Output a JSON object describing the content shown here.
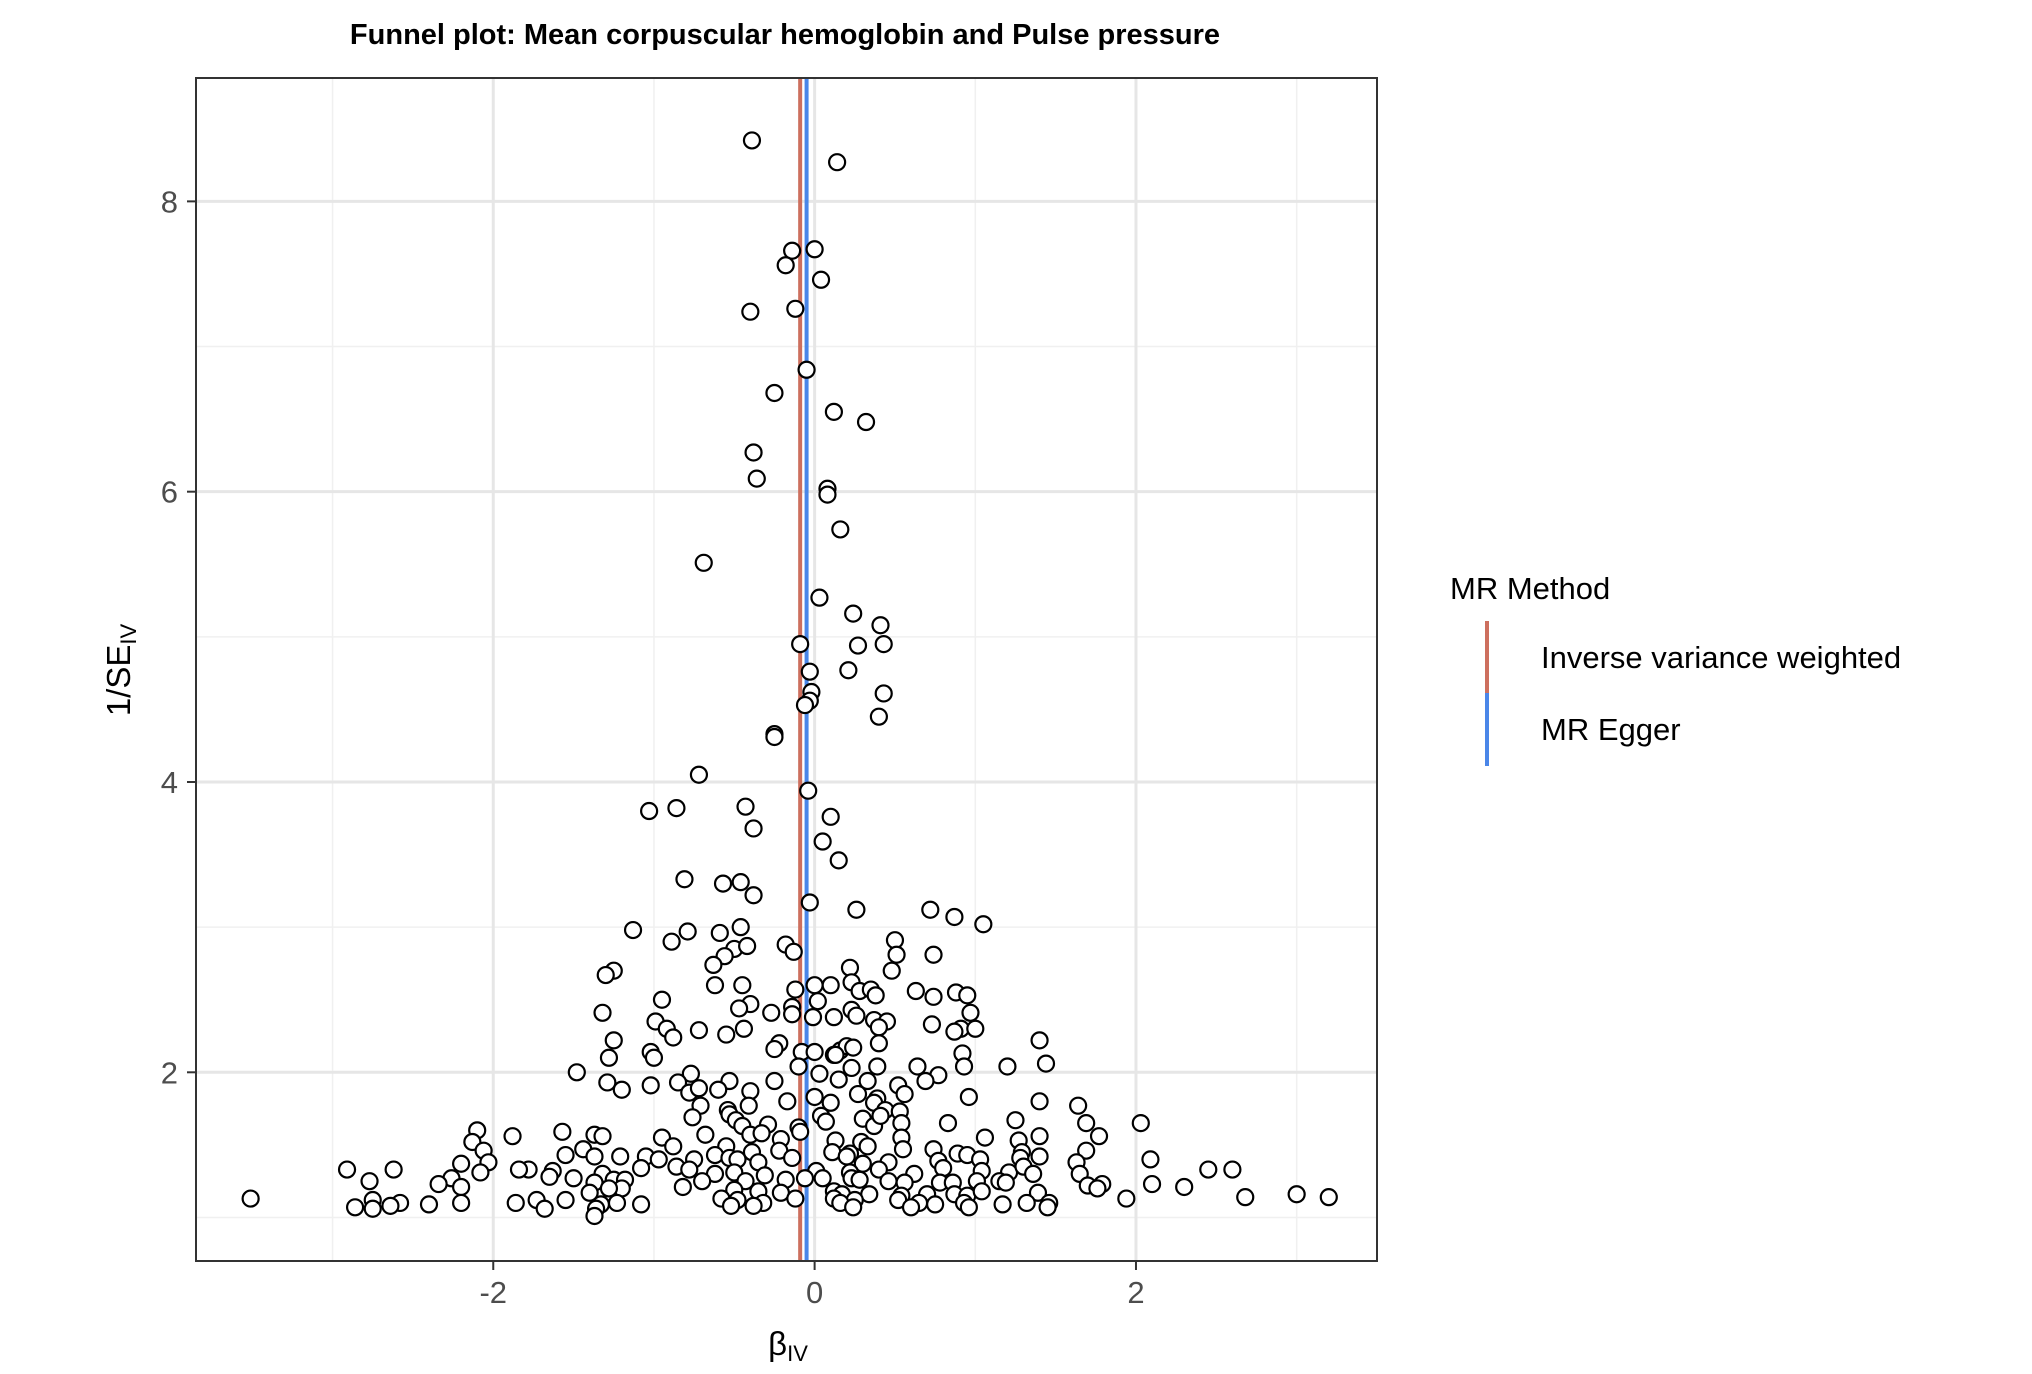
{
  "chart_data": {
    "type": "scatter",
    "title": "Funnel plot: Mean corpuscular hemoglobin and Pulse pressure",
    "xlabel": {
      "main": "β",
      "sub": "IV"
    },
    "ylabel": {
      "main": "1/SE",
      "sub": "IV"
    },
    "xlim": [
      -3.85,
      3.5
    ],
    "ylim": [
      0.7,
      8.85
    ],
    "x_ticks": [
      -2,
      0,
      2
    ],
    "x_tick_labels": [
      "-2",
      "0",
      "2"
    ],
    "y_ticks": [
      2,
      4,
      6,
      8
    ],
    "y_tick_labels": [
      "2",
      "4",
      "6",
      "8"
    ],
    "x_minor": [
      -3,
      -1,
      1,
      3
    ],
    "y_minor": [
      1,
      3,
      5,
      7
    ],
    "grid": true,
    "legend": {
      "title": "MR Method",
      "position": "right",
      "entries": [
        {
          "label": "Inverse variance weighted",
          "color": "#cd6f5e"
        },
        {
          "label": "MR Egger",
          "color": "#4a86e8"
        }
      ]
    },
    "lines": [
      {
        "name": "Inverse variance weighted",
        "x": -0.09,
        "color": "#cd6f5e"
      },
      {
        "name": "MR Egger",
        "x": -0.05,
        "color": "#4a86e8"
      }
    ],
    "points": [
      [
        -0.39,
        8.42
      ],
      [
        0.14,
        8.27
      ],
      [
        -0.14,
        7.66
      ],
      [
        0.0,
        7.67
      ],
      [
        -0.18,
        7.56
      ],
      [
        0.04,
        7.46
      ],
      [
        -0.4,
        7.24
      ],
      [
        -0.12,
        7.26
      ],
      [
        -0.05,
        6.84
      ],
      [
        -0.25,
        6.68
      ],
      [
        0.12,
        6.55
      ],
      [
        0.32,
        6.48
      ],
      [
        -0.38,
        6.27
      ],
      [
        -0.36,
        6.09
      ],
      [
        0.08,
        6.02
      ],
      [
        0.08,
        5.98
      ],
      [
        0.16,
        5.74
      ],
      [
        -0.69,
        5.51
      ],
      [
        0.03,
        5.27
      ],
      [
        0.24,
        5.16
      ],
      [
        0.41,
        5.08
      ],
      [
        -0.09,
        4.95
      ],
      [
        0.27,
        4.94
      ],
      [
        0.43,
        4.95
      ],
      [
        -0.03,
        4.76
      ],
      [
        0.21,
        4.77
      ],
      [
        -0.02,
        4.62
      ],
      [
        0.43,
        4.61
      ],
      [
        -0.03,
        4.56
      ],
      [
        -0.06,
        4.53
      ],
      [
        0.4,
        4.45
      ],
      [
        -0.25,
        4.33
      ],
      [
        -0.25,
        4.31
      ],
      [
        -0.72,
        4.05
      ],
      [
        -0.04,
        3.94
      ],
      [
        -1.03,
        3.8
      ],
      [
        -0.86,
        3.82
      ],
      [
        -0.43,
        3.83
      ],
      [
        0.1,
        3.76
      ],
      [
        -0.38,
        3.68
      ],
      [
        0.05,
        3.59
      ],
      [
        0.15,
        3.46
      ],
      [
        -0.81,
        3.33
      ],
      [
        -0.57,
        3.3
      ],
      [
        -0.46,
        3.31
      ],
      [
        -0.38,
        3.22
      ],
      [
        -0.03,
        3.17
      ],
      [
        0.26,
        3.12
      ],
      [
        0.72,
        3.12
      ],
      [
        0.87,
        3.07
      ],
      [
        1.05,
        3.02
      ],
      [
        -1.13,
        2.98
      ],
      [
        -0.59,
        2.96
      ],
      [
        -0.79,
        2.97
      ],
      [
        -0.46,
        3.0
      ],
      [
        -0.89,
        2.9
      ],
      [
        -0.18,
        2.88
      ],
      [
        -0.5,
        2.85
      ],
      [
        -0.42,
        2.87
      ],
      [
        -0.13,
        2.83
      ],
      [
        0.5,
        2.91
      ],
      [
        0.51,
        2.81
      ],
      [
        0.74,
        2.81
      ],
      [
        -0.56,
        2.8
      ],
      [
        -0.63,
        2.74
      ],
      [
        -1.25,
        2.7
      ],
      [
        -1.3,
        2.67
      ],
      [
        0.22,
        2.72
      ],
      [
        0.48,
        2.7
      ],
      [
        -0.62,
        2.6
      ],
      [
        -0.45,
        2.6
      ],
      [
        -0.12,
        2.57
      ],
      [
        0.0,
        2.6
      ],
      [
        0.1,
        2.6
      ],
      [
        0.23,
        2.62
      ],
      [
        0.28,
        2.56
      ],
      [
        0.35,
        2.57
      ],
      [
        0.38,
        2.53
      ],
      [
        0.63,
        2.56
      ],
      [
        0.74,
        2.52
      ],
      [
        0.88,
        2.55
      ],
      [
        0.95,
        2.53
      ],
      [
        -0.95,
        2.5
      ],
      [
        -0.4,
        2.47
      ],
      [
        -0.14,
        2.45
      ],
      [
        0.02,
        2.49
      ],
      [
        0.23,
        2.43
      ],
      [
        0.97,
        2.41
      ],
      [
        -1.32,
        2.41
      ],
      [
        -0.47,
        2.44
      ],
      [
        -0.14,
        2.4
      ],
      [
        -0.27,
        2.41
      ],
      [
        -0.01,
        2.38
      ],
      [
        0.12,
        2.38
      ],
      [
        0.26,
        2.39
      ],
      [
        0.37,
        2.36
      ],
      [
        0.45,
        2.35
      ],
      [
        0.73,
        2.33
      ],
      [
        0.91,
        2.3
      ],
      [
        1.0,
        2.3
      ],
      [
        -0.99,
        2.35
      ],
      [
        -0.72,
        2.29
      ],
      [
        -0.92,
        2.3
      ],
      [
        -0.44,
        2.3
      ],
      [
        0.4,
        2.31
      ],
      [
        0.87,
        2.28
      ],
      [
        1.4,
        2.22
      ],
      [
        -1.25,
        2.22
      ],
      [
        -0.88,
        2.24
      ],
      [
        -0.55,
        2.26
      ],
      [
        -0.22,
        2.2
      ],
      [
        -0.25,
        2.16
      ],
      [
        0.16,
        2.15
      ],
      [
        0.2,
        2.18
      ],
      [
        0.24,
        2.17
      ],
      [
        0.12,
        2.12
      ],
      [
        0.4,
        2.2
      ],
      [
        -1.02,
        2.14
      ],
      [
        -1.28,
        2.1
      ],
      [
        -1.0,
        2.1
      ],
      [
        -0.08,
        2.14
      ],
      [
        -0.0,
        2.14
      ],
      [
        0.13,
        2.12
      ],
      [
        0.92,
        2.13
      ],
      [
        0.93,
        2.04
      ],
      [
        1.44,
        2.06
      ],
      [
        1.2,
        2.04
      ],
      [
        -1.48,
        2.0
      ],
      [
        -0.77,
        1.99
      ],
      [
        -0.1,
        2.04
      ],
      [
        0.03,
        1.99
      ],
      [
        0.23,
        2.03
      ],
      [
        0.39,
        2.04
      ],
      [
        0.64,
        2.04
      ],
      [
        0.77,
        1.98
      ],
      [
        0.69,
        1.94
      ],
      [
        -0.85,
        1.93
      ],
      [
        -1.29,
        1.93
      ],
      [
        -0.53,
        1.94
      ],
      [
        -0.25,
        1.94
      ],
      [
        0.15,
        1.95
      ],
      [
        0.33,
        1.94
      ],
      [
        0.52,
        1.91
      ],
      [
        -1.2,
        1.88
      ],
      [
        -1.02,
        1.91
      ],
      [
        -0.78,
        1.86
      ],
      [
        -0.72,
        1.89
      ],
      [
        -0.6,
        1.88
      ],
      [
        -0.4,
        1.87
      ],
      [
        0.0,
        1.83
      ],
      [
        0.27,
        1.85
      ],
      [
        0.39,
        1.82
      ],
      [
        0.56,
        1.85
      ],
      [
        0.96,
        1.83
      ],
      [
        1.4,
        1.8
      ],
      [
        1.64,
        1.77
      ],
      [
        -0.71,
        1.77
      ],
      [
        -0.54,
        1.74
      ],
      [
        -0.41,
        1.77
      ],
      [
        -0.17,
        1.8
      ],
      [
        0.1,
        1.79
      ],
      [
        0.37,
        1.79
      ],
      [
        0.44,
        1.74
      ],
      [
        0.53,
        1.73
      ],
      [
        -0.76,
        1.69
      ],
      [
        -0.53,
        1.71
      ],
      [
        -0.49,
        1.67
      ],
      [
        -0.45,
        1.63
      ],
      [
        -0.29,
        1.64
      ],
      [
        -0.1,
        1.62
      ],
      [
        0.04,
        1.7
      ],
      [
        0.07,
        1.66
      ],
      [
        0.3,
        1.68
      ],
      [
        0.37,
        1.63
      ],
      [
        0.41,
        1.7
      ],
      [
        0.54,
        1.65
      ],
      [
        0.83,
        1.65
      ],
      [
        1.25,
        1.67
      ],
      [
        1.69,
        1.65
      ],
      [
        2.03,
        1.65
      ],
      [
        -2.1,
        1.6
      ],
      [
        -1.88,
        1.56
      ],
      [
        -1.57,
        1.59
      ],
      [
        -1.37,
        1.57
      ],
      [
        -1.32,
        1.56
      ],
      [
        -0.95,
        1.55
      ],
      [
        -0.68,
        1.57
      ],
      [
        -0.4,
        1.57
      ],
      [
        -0.33,
        1.58
      ],
      [
        -0.21,
        1.54
      ],
      [
        -0.09,
        1.59
      ],
      [
        0.13,
        1.53
      ],
      [
        0.29,
        1.52
      ],
      [
        0.54,
        1.55
      ],
      [
        1.06,
        1.55
      ],
      [
        1.27,
        1.53
      ],
      [
        1.4,
        1.56
      ],
      [
        1.77,
        1.56
      ],
      [
        -2.13,
        1.52
      ],
      [
        -2.06,
        1.46
      ],
      [
        -1.44,
        1.47
      ],
      [
        -1.37,
        1.42
      ],
      [
        -0.88,
        1.49
      ],
      [
        -0.55,
        1.49
      ],
      [
        -0.62,
        1.43
      ],
      [
        -0.53,
        1.41
      ],
      [
        -0.39,
        1.45
      ],
      [
        -0.22,
        1.46
      ],
      [
        0.11,
        1.45
      ],
      [
        0.22,
        1.44
      ],
      [
        0.33,
        1.49
      ],
      [
        0.55,
        1.47
      ],
      [
        0.74,
        1.47
      ],
      [
        0.89,
        1.44
      ],
      [
        1.29,
        1.45
      ],
      [
        1.69,
        1.46
      ],
      [
        -1.55,
        1.43
      ],
      [
        -1.21,
        1.42
      ],
      [
        -1.05,
        1.42
      ],
      [
        -0.97,
        1.4
      ],
      [
        -0.75,
        1.4
      ],
      [
        -0.48,
        1.4
      ],
      [
        -0.35,
        1.38
      ],
      [
        -0.14,
        1.41
      ],
      [
        0.2,
        1.42
      ],
      [
        0.3,
        1.37
      ],
      [
        0.46,
        1.38
      ],
      [
        0.77,
        1.39
      ],
      [
        0.95,
        1.43
      ],
      [
        1.03,
        1.4
      ],
      [
        1.28,
        1.41
      ],
      [
        1.4,
        1.42
      ],
      [
        1.63,
        1.38
      ],
      [
        2.09,
        1.4
      ],
      [
        -2.2,
        1.37
      ],
      [
        -2.03,
        1.38
      ],
      [
        -1.78,
        1.33
      ],
      [
        -1.63,
        1.32
      ],
      [
        -1.32,
        1.3
      ],
      [
        -1.08,
        1.34
      ],
      [
        -0.86,
        1.35
      ],
      [
        -0.78,
        1.33
      ],
      [
        -0.62,
        1.3
      ],
      [
        -0.5,
        1.31
      ],
      [
        -0.31,
        1.29
      ],
      [
        0.01,
        1.32
      ],
      [
        0.22,
        1.31
      ],
      [
        0.4,
        1.33
      ],
      [
        0.62,
        1.3
      ],
      [
        0.8,
        1.34
      ],
      [
        1.04,
        1.32
      ],
      [
        1.21,
        1.31
      ],
      [
        1.3,
        1.35
      ],
      [
        1.36,
        1.3
      ],
      [
        1.65,
        1.3
      ],
      [
        2.45,
        1.33
      ],
      [
        2.6,
        1.33
      ],
      [
        -2.91,
        1.33
      ],
      [
        -2.62,
        1.33
      ],
      [
        -2.26,
        1.27
      ],
      [
        -2.08,
        1.31
      ],
      [
        -1.84,
        1.33
      ],
      [
        -1.65,
        1.28
      ],
      [
        -1.5,
        1.27
      ],
      [
        -1.25,
        1.26
      ],
      [
        -1.37,
        1.24
      ],
      [
        -1.18,
        1.26
      ],
      [
        -0.7,
        1.25
      ],
      [
        -0.43,
        1.25
      ],
      [
        -0.18,
        1.26
      ],
      [
        -0.06,
        1.27
      ],
      [
        0.05,
        1.27
      ],
      [
        0.23,
        1.27
      ],
      [
        0.28,
        1.26
      ],
      [
        0.46,
        1.25
      ],
      [
        0.56,
        1.24
      ],
      [
        0.78,
        1.24
      ],
      [
        0.86,
        1.24
      ],
      [
        1.01,
        1.25
      ],
      [
        1.15,
        1.25
      ],
      [
        1.19,
        1.24
      ],
      [
        1.7,
        1.22
      ],
      [
        1.79,
        1.23
      ],
      [
        2.1,
        1.23
      ],
      [
        2.3,
        1.21
      ],
      [
        -2.77,
        1.25
      ],
      [
        -2.34,
        1.23
      ],
      [
        -2.2,
        1.21
      ],
      [
        -1.2,
        1.2
      ],
      [
        -1.28,
        1.2
      ],
      [
        -1.4,
        1.17
      ],
      [
        -0.82,
        1.21
      ],
      [
        -0.5,
        1.19
      ],
      [
        -0.35,
        1.18
      ],
      [
        -0.21,
        1.17
      ],
      [
        0.12,
        1.18
      ],
      [
        0.17,
        1.16
      ],
      [
        0.34,
        1.16
      ],
      [
        0.54,
        1.15
      ],
      [
        0.7,
        1.16
      ],
      [
        0.87,
        1.16
      ],
      [
        0.95,
        1.15
      ],
      [
        1.04,
        1.18
      ],
      [
        1.39,
        1.17
      ],
      [
        1.76,
        1.2
      ],
      [
        -3.51,
        1.13
      ],
      [
        -2.75,
        1.12
      ],
      [
        -2.58,
        1.1
      ],
      [
        -2.4,
        1.09
      ],
      [
        -2.2,
        1.1
      ],
      [
        -1.86,
        1.1
      ],
      [
        -1.73,
        1.12
      ],
      [
        -1.55,
        1.12
      ],
      [
        -1.33,
        1.09
      ],
      [
        -1.23,
        1.1
      ],
      [
        -1.08,
        1.09
      ],
      [
        -0.58,
        1.13
      ],
      [
        -0.48,
        1.12
      ],
      [
        -0.32,
        1.1
      ],
      [
        -0.12,
        1.13
      ],
      [
        0.12,
        1.13
      ],
      [
        0.25,
        1.12
      ],
      [
        0.52,
        1.12
      ],
      [
        0.65,
        1.1
      ],
      [
        0.75,
        1.09
      ],
      [
        0.93,
        1.1
      ],
      [
        1.17,
        1.09
      ],
      [
        1.32,
        1.1
      ],
      [
        1.46,
        1.1
      ],
      [
        1.94,
        1.13
      ],
      [
        2.68,
        1.14
      ],
      [
        3.0,
        1.16
      ],
      [
        3.2,
        1.14
      ],
      [
        -2.86,
        1.07
      ],
      [
        -2.75,
        1.06
      ],
      [
        -2.64,
        1.08
      ],
      [
        -1.68,
        1.06
      ],
      [
        -1.36,
        1.06
      ],
      [
        -0.52,
        1.08
      ],
      [
        -0.38,
        1.08
      ],
      [
        0.16,
        1.1
      ],
      [
        0.24,
        1.07
      ],
      [
        0.6,
        1.07
      ],
      [
        0.96,
        1.07
      ],
      [
        1.45,
        1.07
      ],
      [
        -1.37,
        1.01
      ]
    ]
  }
}
